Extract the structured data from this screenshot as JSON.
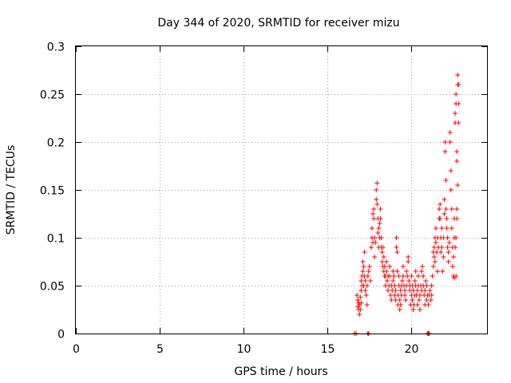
{
  "chart_data": {
    "type": "scatter",
    "title": "Day 344 of 2020, SRMTID for receiver mizu",
    "xlabel": "GPS time / hours",
    "ylabel": "SRMTID / TECUs",
    "xlim": [
      0,
      24.5
    ],
    "ylim": [
      0,
      0.3
    ],
    "xticks": [
      0,
      5,
      10,
      15,
      20
    ],
    "xtick_labels": [
      "0",
      "5",
      "10",
      "15",
      "20"
    ],
    "yticks": [
      0,
      0.05,
      0.1,
      0.15,
      0.2,
      0.25,
      0.3
    ],
    "ytick_labels": [
      "0",
      "0.05",
      "0.1",
      "0.15",
      "0.2",
      "0.25",
      "0.3"
    ],
    "grid": true,
    "marker": "+",
    "color": "#ff0000",
    "series": [
      {
        "name": "SRMTID",
        "points": [
          [
            16.6,
            0.0
          ],
          [
            16.7,
            0.0
          ],
          [
            17.4,
            0.0
          ],
          [
            17.45,
            0.0
          ],
          [
            20.95,
            0.0
          ],
          [
            21.0,
            0.0
          ],
          [
            21.05,
            0.0
          ],
          [
            16.75,
            0.04
          ],
          [
            16.8,
            0.035
          ],
          [
            16.8,
            0.028
          ],
          [
            16.85,
            0.025
          ],
          [
            16.85,
            0.032
          ],
          [
            16.9,
            0.02
          ],
          [
            16.9,
            0.03
          ],
          [
            16.95,
            0.038
          ],
          [
            16.95,
            0.025
          ],
          [
            17.0,
            0.055
          ],
          [
            17.0,
            0.045
          ],
          [
            17.0,
            0.032
          ],
          [
            17.05,
            0.05
          ],
          [
            17.05,
            0.06
          ],
          [
            17.1,
            0.065
          ],
          [
            17.1,
            0.075
          ],
          [
            17.15,
            0.05
          ],
          [
            17.15,
            0.07
          ],
          [
            17.2,
            0.085
          ],
          [
            17.2,
            0.06
          ],
          [
            17.25,
            0.055
          ],
          [
            17.25,
            0.045
          ],
          [
            17.3,
            0.04
          ],
          [
            17.35,
            0.03
          ],
          [
            17.35,
            0.05
          ],
          [
            17.4,
            0.06
          ],
          [
            17.45,
            0.065
          ],
          [
            17.5,
            0.07
          ],
          [
            17.55,
            0.055
          ],
          [
            17.6,
            0.09
          ],
          [
            17.65,
            0.1
          ],
          [
            17.65,
            0.11
          ],
          [
            17.7,
            0.095
          ],
          [
            17.7,
            0.125
          ],
          [
            17.75,
            0.12
          ],
          [
            17.75,
            0.13
          ],
          [
            17.8,
            0.08
          ],
          [
            17.8,
            0.1
          ],
          [
            17.85,
            0.095
          ],
          [
            17.9,
            0.14
          ],
          [
            17.9,
            0.15
          ],
          [
            17.95,
            0.157
          ],
          [
            17.95,
            0.135
          ],
          [
            18.0,
            0.12
          ],
          [
            18.0,
            0.105
          ],
          [
            18.05,
            0.11
          ],
          [
            18.05,
            0.09
          ],
          [
            18.1,
            0.1
          ],
          [
            18.1,
            0.115
          ],
          [
            18.15,
            0.13
          ],
          [
            18.15,
            0.12
          ],
          [
            18.2,
            0.09
          ],
          [
            18.2,
            0.1
          ],
          [
            18.25,
            0.085
          ],
          [
            18.25,
            0.075
          ],
          [
            18.3,
            0.07
          ],
          [
            18.3,
            0.09
          ],
          [
            18.35,
            0.065
          ],
          [
            18.35,
            0.08
          ],
          [
            18.4,
            0.06
          ],
          [
            18.4,
            0.07
          ],
          [
            18.45,
            0.05
          ],
          [
            18.45,
            0.06
          ],
          [
            18.5,
            0.065
          ],
          [
            18.5,
            0.075
          ],
          [
            18.55,
            0.055
          ],
          [
            18.6,
            0.06
          ],
          [
            18.6,
            0.045
          ],
          [
            18.65,
            0.05
          ],
          [
            18.7,
            0.06
          ],
          [
            18.7,
            0.07
          ],
          [
            18.75,
            0.04
          ],
          [
            18.8,
            0.05
          ],
          [
            18.8,
            0.035
          ],
          [
            18.85,
            0.045
          ],
          [
            18.9,
            0.065
          ],
          [
            18.9,
            0.055
          ],
          [
            18.95,
            0.06
          ],
          [
            19.0,
            0.05
          ],
          [
            19.0,
            0.04
          ],
          [
            19.05,
            0.035
          ],
          [
            19.05,
            0.045
          ],
          [
            19.1,
            0.1
          ],
          [
            19.1,
            0.09
          ],
          [
            19.15,
            0.085
          ],
          [
            19.15,
            0.065
          ],
          [
            19.2,
            0.03
          ],
          [
            19.2,
            0.04
          ],
          [
            19.25,
            0.05
          ],
          [
            19.25,
            0.06
          ],
          [
            19.3,
            0.035
          ],
          [
            19.3,
            0.025
          ],
          [
            19.35,
            0.03
          ],
          [
            19.35,
            0.045
          ],
          [
            19.4,
            0.05
          ],
          [
            19.4,
            0.04
          ],
          [
            19.45,
            0.055
          ],
          [
            19.5,
            0.06
          ],
          [
            19.5,
            0.07
          ],
          [
            19.55,
            0.05
          ],
          [
            19.6,
            0.04
          ],
          [
            19.6,
            0.045
          ],
          [
            19.65,
            0.035
          ],
          [
            19.7,
            0.05
          ],
          [
            19.7,
            0.065
          ],
          [
            19.75,
            0.06
          ],
          [
            19.8,
            0.08
          ],
          [
            19.8,
            0.075
          ],
          [
            19.85,
            0.055
          ],
          [
            19.9,
            0.045
          ],
          [
            19.9,
            0.05
          ],
          [
            19.95,
            0.03
          ],
          [
            20.0,
            0.04
          ],
          [
            20.0,
            0.06
          ],
          [
            20.05,
            0.05
          ],
          [
            20.05,
            0.035
          ],
          [
            20.1,
            0.045
          ],
          [
            20.1,
            0.025
          ],
          [
            20.15,
            0.03
          ],
          [
            20.2,
            0.04
          ],
          [
            20.2,
            0.055
          ],
          [
            20.25,
            0.065
          ],
          [
            20.25,
            0.05
          ],
          [
            20.3,
            0.04
          ],
          [
            20.35,
            0.03
          ],
          [
            20.35,
            0.045
          ],
          [
            20.4,
            0.05
          ],
          [
            20.4,
            0.06
          ],
          [
            20.45,
            0.035
          ],
          [
            20.5,
            0.025
          ],
          [
            20.5,
            0.04
          ],
          [
            20.55,
            0.05
          ],
          [
            20.6,
            0.065
          ],
          [
            20.6,
            0.045
          ],
          [
            20.65,
            0.07
          ],
          [
            20.7,
            0.06
          ],
          [
            20.7,
            0.05
          ],
          [
            20.75,
            0.04
          ],
          [
            20.8,
            0.03
          ],
          [
            20.8,
            0.045
          ],
          [
            20.85,
            0.055
          ],
          [
            20.9,
            0.05
          ],
          [
            20.9,
            0.035
          ],
          [
            20.95,
            0.04
          ],
          [
            21.0,
            0.03
          ],
          [
            21.05,
            0.04
          ],
          [
            21.1,
            0.045
          ],
          [
            21.15,
            0.035
          ],
          [
            21.2,
            0.04
          ],
          [
            21.2,
            0.05
          ],
          [
            21.25,
            0.06
          ],
          [
            21.3,
            0.07
          ],
          [
            21.3,
            0.085
          ],
          [
            21.35,
            0.09
          ],
          [
            21.35,
            0.08
          ],
          [
            21.4,
            0.1
          ],
          [
            21.4,
            0.075
          ],
          [
            21.45,
            0.11
          ],
          [
            21.45,
            0.095
          ],
          [
            21.5,
            0.085
          ],
          [
            21.55,
            0.1
          ],
          [
            21.55,
            0.065
          ],
          [
            21.6,
            0.09
          ],
          [
            21.65,
            0.12
          ],
          [
            21.65,
            0.13
          ],
          [
            21.7,
            0.135
          ],
          [
            21.7,
            0.12
          ],
          [
            21.75,
            0.1
          ],
          [
            21.75,
            0.085
          ],
          [
            21.8,
            0.09
          ],
          [
            21.8,
            0.11
          ],
          [
            21.85,
            0.065
          ],
          [
            21.9,
            0.08
          ],
          [
            21.9,
            0.1
          ],
          [
            21.95,
            0.14
          ],
          [
            21.95,
            0.125
          ],
          [
            22.0,
            0.2
          ],
          [
            22.0,
            0.19
          ],
          [
            22.05,
            0.16
          ],
          [
            22.05,
            0.13
          ],
          [
            22.1,
            0.11
          ],
          [
            22.1,
            0.12
          ],
          [
            22.15,
            0.1
          ],
          [
            22.15,
            0.09
          ],
          [
            22.2,
            0.085
          ],
          [
            22.2,
            0.075
          ],
          [
            22.25,
            0.095
          ],
          [
            22.3,
            0.2
          ],
          [
            22.3,
            0.21
          ],
          [
            22.35,
            0.17
          ],
          [
            22.35,
            0.15
          ],
          [
            22.4,
            0.13
          ],
          [
            22.4,
            0.11
          ],
          [
            22.45,
            0.09
          ],
          [
            22.45,
            0.07
          ],
          [
            22.5,
            0.06
          ],
          [
            22.5,
            0.08
          ],
          [
            22.55,
            0.1
          ],
          [
            22.55,
            0.12
          ],
          [
            22.6,
            0.22
          ],
          [
            22.6,
            0.23
          ],
          [
            22.65,
            0.25
          ],
          [
            22.65,
            0.24
          ],
          [
            22.7,
            0.19
          ],
          [
            22.7,
            0.18
          ],
          [
            22.75,
            0.26
          ],
          [
            22.75,
            0.27
          ],
          [
            22.8,
            0.26
          ],
          [
            22.8,
            0.24
          ],
          [
            22.8,
            0.22
          ],
          [
            22.75,
            0.155
          ],
          [
            22.7,
            0.13
          ],
          [
            22.7,
            0.12
          ],
          [
            22.65,
            0.1
          ],
          [
            22.6,
            0.09
          ],
          [
            22.65,
            0.06
          ],
          [
            22.55,
            0.058
          ]
        ]
      }
    ]
  }
}
